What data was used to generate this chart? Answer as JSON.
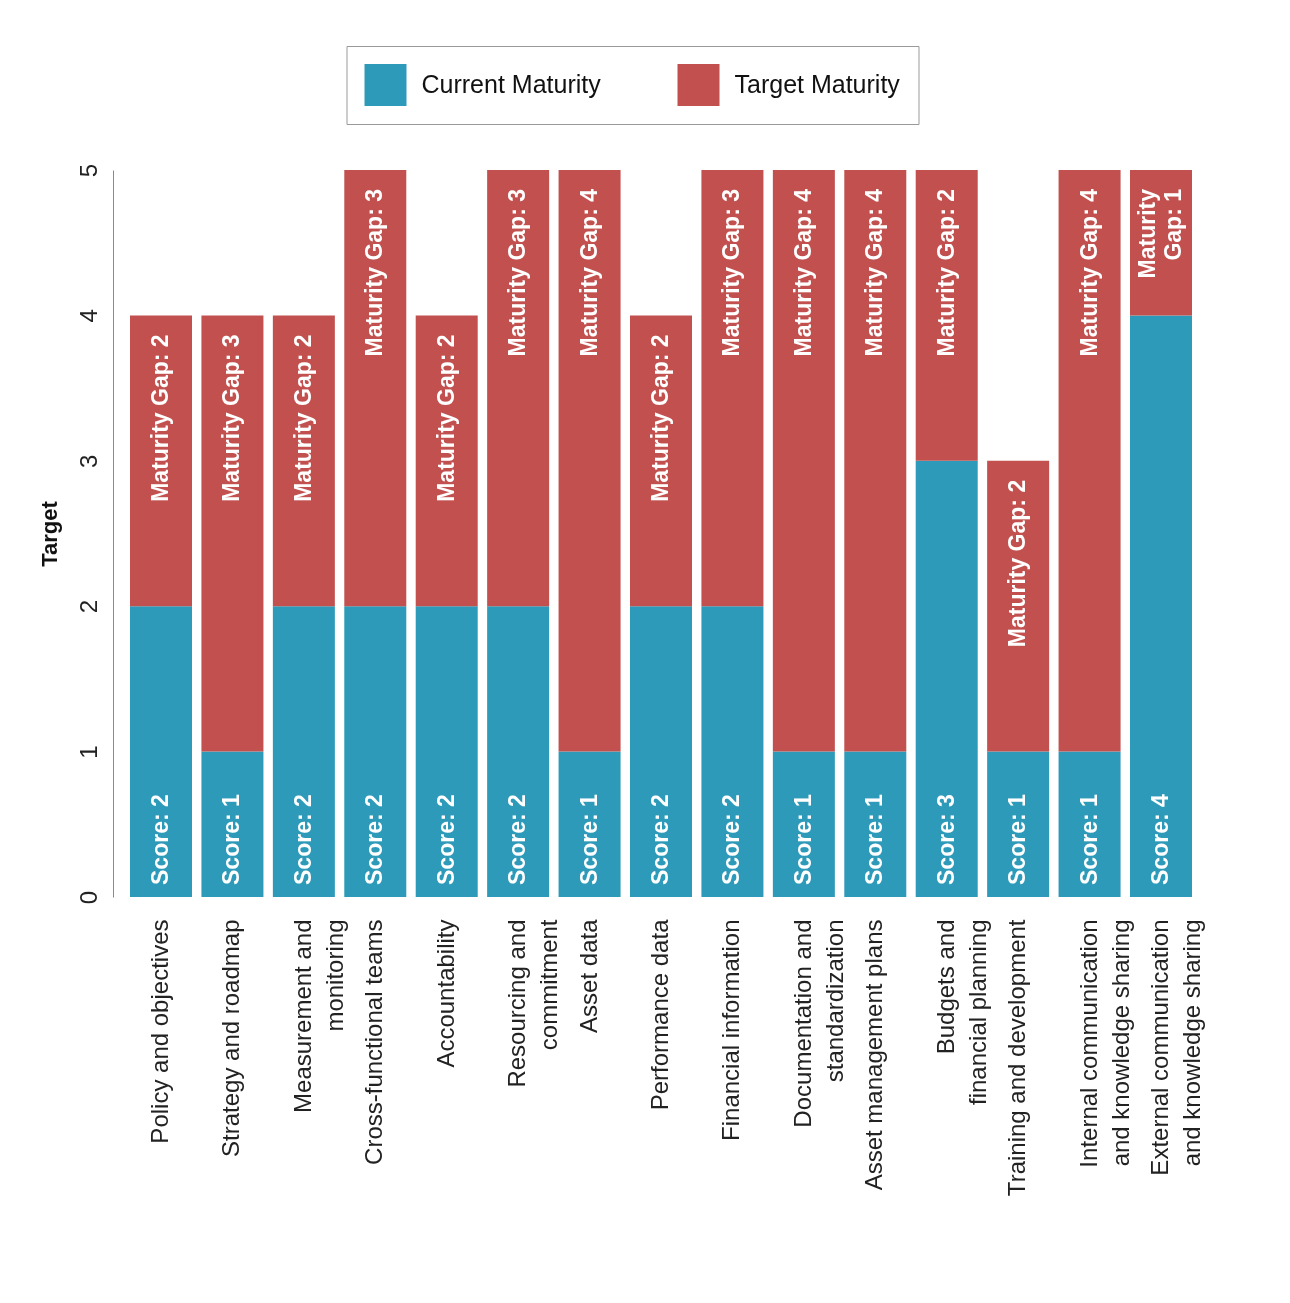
{
  "chart_data": {
    "type": "bar",
    "stacked": true,
    "categories": [
      "Policy and objectives",
      "Strategy and roadmap",
      "Measurement and monitoring",
      "Cross-functional teams",
      "Accountability",
      "Resourcing and commitment",
      "Asset data",
      "Performance data",
      "Financial information",
      "Documentation and standardization",
      "Asset management plans",
      "Budgets and financial planning",
      "Training and development",
      "Internal communication and knowledge sharing",
      "External communication and knowledge sharing"
    ],
    "ylabel": "Target",
    "ylim": [
      0,
      5
    ],
    "yticks": [
      0,
      1,
      2,
      3,
      4,
      5
    ],
    "grid": false,
    "legend": "top",
    "series": [
      {
        "name": "Current Maturity",
        "color": "#2e9ab9",
        "values": [
          2,
          1,
          2,
          2,
          2,
          2,
          1,
          2,
          2,
          1,
          1,
          3,
          1,
          1,
          4
        ],
        "value_labels": [
          "Score: 2",
          "Score: 1",
          "Score: 2",
          "Score: 2",
          "Score: 2",
          "Score: 2",
          "Score: 1",
          "Score: 2",
          "Score: 2",
          "Score: 1",
          "Score: 1",
          "Score: 3",
          "Score: 1",
          "Score: 1",
          "Score: 4"
        ]
      },
      {
        "name": "Target Maturity",
        "color": "#c1504e",
        "values": [
          2,
          3,
          2,
          3,
          2,
          3,
          4,
          2,
          3,
          4,
          4,
          2,
          2,
          4,
          1
        ],
        "value_labels": [
          "Maturity Gap: 2",
          "Maturity Gap: 3",
          "Maturity Gap: 2",
          "Maturity Gap: 3",
          "Maturity Gap: 2",
          "Maturity Gap: 3",
          "Maturity Gap: 4",
          "Maturity Gap: 2",
          "Maturity Gap: 3",
          "Maturity Gap: 4",
          "Maturity Gap: 4",
          "Maturity Gap: 2",
          "Maturity Gap: 2",
          "Maturity Gap: 4",
          "Maturity Gap: 1"
        ]
      }
    ]
  }
}
